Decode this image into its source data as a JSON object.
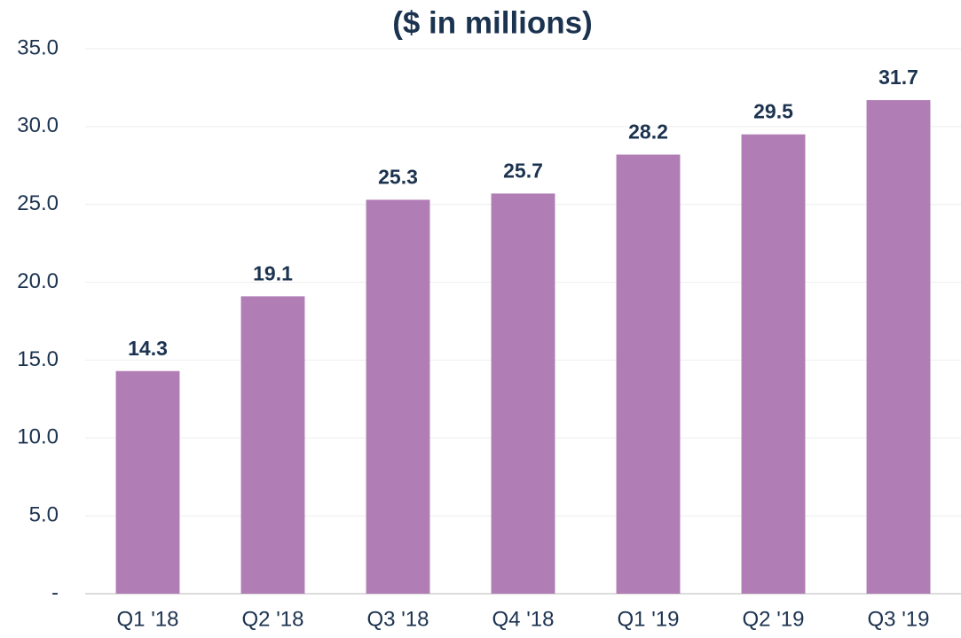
{
  "chart_data": {
    "type": "bar",
    "title": "($ in millions)",
    "categories": [
      "Q1 '18",
      "Q2 '18",
      "Q3 '18",
      "Q4 '18",
      "Q1 '19",
      "Q2 '19",
      "Q3 '19"
    ],
    "values": [
      14.3,
      19.1,
      25.3,
      25.7,
      28.2,
      29.5,
      31.7
    ],
    "color": "#b07db5",
    "ylim": [
      0,
      35
    ],
    "yticks": [
      {
        "value": 0,
        "label": "-"
      },
      {
        "value": 5,
        "label": "5.0"
      },
      {
        "value": 10,
        "label": "10.0"
      },
      {
        "value": 15,
        "label": "15.0"
      },
      {
        "value": 20,
        "label": "20.0"
      },
      {
        "value": 25,
        "label": "25.0"
      },
      {
        "value": 30,
        "label": "30.0"
      },
      {
        "value": 35,
        "label": "35.0"
      }
    ],
    "grid": true
  }
}
